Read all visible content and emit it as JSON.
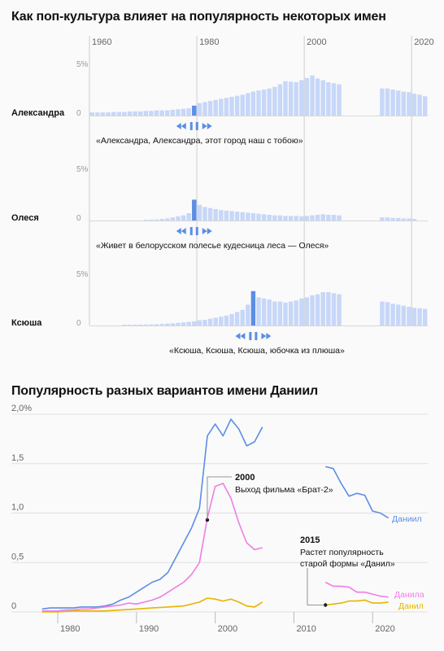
{
  "headline1": "Как поп-культура влияет на популярность некоторых имен",
  "headline2": "Популярность разных вариантов имени Даниил",
  "colors": {
    "bar": "#c7d7f8",
    "bar_highlight": "#5b8ee6",
    "daniil": "#5b8ee6",
    "danila": "#ee7ee6",
    "danil": "#e8b400"
  },
  "chart_data": [
    {
      "type": "bar",
      "x_ticks": [
        1960,
        1980,
        2000,
        2020
      ],
      "y_ticks": [
        "5%",
        "0"
      ],
      "ylim": [
        0,
        6
      ],
      "panels": [
        {
          "name": "Александра",
          "highlight_year": 1979,
          "quote": "«Александра, Александра, этот город наш с тобою»",
          "years": [
            1960,
            1961,
            1962,
            1963,
            1964,
            1965,
            1966,
            1967,
            1968,
            1969,
            1970,
            1971,
            1972,
            1973,
            1974,
            1975,
            1976,
            1977,
            1978,
            1979,
            1980,
            1981,
            1982,
            1983,
            1984,
            1985,
            1986,
            1987,
            1988,
            1989,
            1990,
            1991,
            1992,
            1993,
            1994,
            1995,
            1996,
            1997,
            1998,
            1999,
            2000,
            2001,
            2002,
            2003,
            2004,
            2005,
            2006,
            2014,
            2015,
            2016,
            2017,
            2018,
            2019,
            2020,
            2021,
            2022
          ],
          "values": [
            0.3,
            0.3,
            0.3,
            0.3,
            0.35,
            0.35,
            0.35,
            0.4,
            0.4,
            0.4,
            0.45,
            0.45,
            0.5,
            0.5,
            0.5,
            0.55,
            0.6,
            0.65,
            0.7,
            0.95,
            1.2,
            1.3,
            1.4,
            1.5,
            1.6,
            1.7,
            1.8,
            1.9,
            2.0,
            2.15,
            2.3,
            2.4,
            2.5,
            2.6,
            2.75,
            3.0,
            3.3,
            3.25,
            3.2,
            3.4,
            3.6,
            3.85,
            3.55,
            3.4,
            3.2,
            3.1,
            3.0,
            2.6,
            2.6,
            2.5,
            2.4,
            2.3,
            2.25,
            2.1,
            2.0,
            1.85
          ]
        },
        {
          "name": "Олеся",
          "highlight_year": 1979,
          "quote": "«Живет в белорусском полесье кудесница леса — Олеся»",
          "years": [
            1970,
            1971,
            1972,
            1973,
            1974,
            1975,
            1976,
            1977,
            1978,
            1979,
            1980,
            1981,
            1982,
            1983,
            1984,
            1985,
            1986,
            1987,
            1988,
            1989,
            1990,
            1991,
            1992,
            1993,
            1994,
            1995,
            1996,
            1997,
            1998,
            1999,
            2000,
            2001,
            2002,
            2003,
            2004,
            2005,
            2006,
            2014,
            2015,
            2016,
            2017,
            2018,
            2019,
            2020
          ],
          "values": [
            0.05,
            0.08,
            0.1,
            0.15,
            0.2,
            0.3,
            0.4,
            0.5,
            0.7,
            2.0,
            1.5,
            1.3,
            1.2,
            1.1,
            1.0,
            0.95,
            0.9,
            0.85,
            0.8,
            0.75,
            0.7,
            0.65,
            0.6,
            0.55,
            0.5,
            0.5,
            0.45,
            0.45,
            0.45,
            0.4,
            0.45,
            0.5,
            0.55,
            0.6,
            0.55,
            0.55,
            0.5,
            0.3,
            0.3,
            0.25,
            0.25,
            0.2,
            0.2,
            0.15
          ]
        },
        {
          "name": "Ксюша",
          "highlight_year": 1990,
          "quote": "«Ксюша, Ксюша, Ксюша, юбочка из плюша»",
          "years": [
            1966,
            1967,
            1968,
            1969,
            1970,
            1971,
            1972,
            1973,
            1974,
            1975,
            1976,
            1977,
            1978,
            1979,
            1980,
            1981,
            1982,
            1983,
            1984,
            1985,
            1986,
            1987,
            1988,
            1989,
            1990,
            1991,
            1992,
            1993,
            1994,
            1995,
            1996,
            1997,
            1998,
            1999,
            2000,
            2001,
            2002,
            2003,
            2004,
            2005,
            2006,
            2014,
            2015,
            2016,
            2017,
            2018,
            2019,
            2020,
            2021,
            2022
          ],
          "values": [
            0.05,
            0.05,
            0.05,
            0.08,
            0.1,
            0.1,
            0.12,
            0.15,
            0.18,
            0.2,
            0.25,
            0.3,
            0.35,
            0.4,
            0.5,
            0.55,
            0.65,
            0.75,
            0.85,
            0.95,
            1.1,
            1.3,
            1.5,
            2.0,
            3.3,
            2.7,
            2.6,
            2.5,
            2.3,
            2.3,
            2.2,
            2.3,
            2.4,
            2.6,
            2.7,
            2.9,
            3.0,
            3.2,
            3.2,
            3.1,
            3.0,
            2.3,
            2.25,
            2.1,
            2.0,
            1.9,
            1.8,
            1.7,
            1.65,
            1.6
          ]
        }
      ]
    },
    {
      "type": "line",
      "x_ticks": [
        1980,
        1990,
        2000,
        2010,
        2020
      ],
      "y_ticks": [
        "2,0%",
        "1,5",
        "1,0",
        "0,5",
        "0"
      ],
      "ylim": [
        0,
        2
      ],
      "series": [
        {
          "name": "Даниил",
          "segments": [
            {
              "x": [
                1978,
                1979,
                1980,
                1981,
                1982,
                1983,
                1984,
                1985,
                1986,
                1987,
                1988,
                1989,
                1990,
                1991,
                1992,
                1993,
                1994,
                1995,
                1996,
                1997,
                1998,
                1999,
                2000,
                2001,
                2002,
                2003,
                2004,
                2005,
                2006
              ],
              "y": [
                0.03,
                0.04,
                0.04,
                0.04,
                0.04,
                0.05,
                0.05,
                0.05,
                0.06,
                0.08,
                0.12,
                0.15,
                0.2,
                0.25,
                0.3,
                0.33,
                0.4,
                0.55,
                0.7,
                0.85,
                1.05,
                1.78,
                1.9,
                1.78,
                1.95,
                1.85,
                1.68,
                1.72,
                1.87
              ]
            },
            {
              "x": [
                2014,
                2015,
                2016,
                2017,
                2018,
                2019,
                2020,
                2021,
                2022
              ],
              "y": [
                1.47,
                1.45,
                1.3,
                1.17,
                1.2,
                1.18,
                1.02,
                1.0,
                0.95
              ]
            }
          ]
        },
        {
          "name": "Данила",
          "segments": [
            {
              "x": [
                1978,
                1979,
                1980,
                1981,
                1982,
                1983,
                1984,
                1985,
                1986,
                1987,
                1988,
                1989,
                1990,
                1991,
                1992,
                1993,
                1994,
                1995,
                1996,
                1997,
                1998,
                1999,
                2000,
                2001,
                2002,
                2003,
                2004,
                2005,
                2006
              ],
              "y": [
                0.01,
                0.01,
                0.01,
                0.02,
                0.02,
                0.03,
                0.03,
                0.04,
                0.05,
                0.06,
                0.07,
                0.09,
                0.08,
                0.1,
                0.12,
                0.15,
                0.2,
                0.25,
                0.3,
                0.38,
                0.5,
                0.95,
                1.27,
                1.3,
                1.15,
                0.9,
                0.7,
                0.63,
                0.65
              ]
            },
            {
              "x": [
                2014,
                2015,
                2016,
                2017,
                2018,
                2019,
                2020,
                2021,
                2022
              ],
              "y": [
                0.3,
                0.26,
                0.26,
                0.25,
                0.2,
                0.2,
                0.18,
                0.16,
                0.15
              ]
            }
          ]
        },
        {
          "name": "Данил",
          "segments": [
            {
              "x": [
                1978,
                1980,
                1982,
                1984,
                1986,
                1988,
                1990,
                1992,
                1994,
                1996,
                1998,
                1999,
                2000,
                2001,
                2002,
                2003,
                2004,
                2005,
                2006
              ],
              "y": [
                0.0,
                0.0,
                0.01,
                0.01,
                0.01,
                0.02,
                0.03,
                0.04,
                0.05,
                0.06,
                0.1,
                0.14,
                0.13,
                0.11,
                0.13,
                0.1,
                0.06,
                0.05,
                0.1
              ]
            },
            {
              "x": [
                2014,
                2015,
                2016,
                2017,
                2018,
                2019,
                2020,
                2021,
                2022
              ],
              "y": [
                0.07,
                0.08,
                0.09,
                0.11,
                0.11,
                0.12,
                0.09,
                0.09,
                0.1
              ]
            }
          ]
        }
      ],
      "annotations": [
        {
          "year_label": "2000",
          "text": "Выход фильма «Брат-2»",
          "x": 1999,
          "y": 0.93
        },
        {
          "year_label": "2015",
          "text": "Растет популярность",
          "text2": "старой формы «Данил»",
          "x": 2014,
          "y": 0.07
        }
      ]
    }
  ]
}
